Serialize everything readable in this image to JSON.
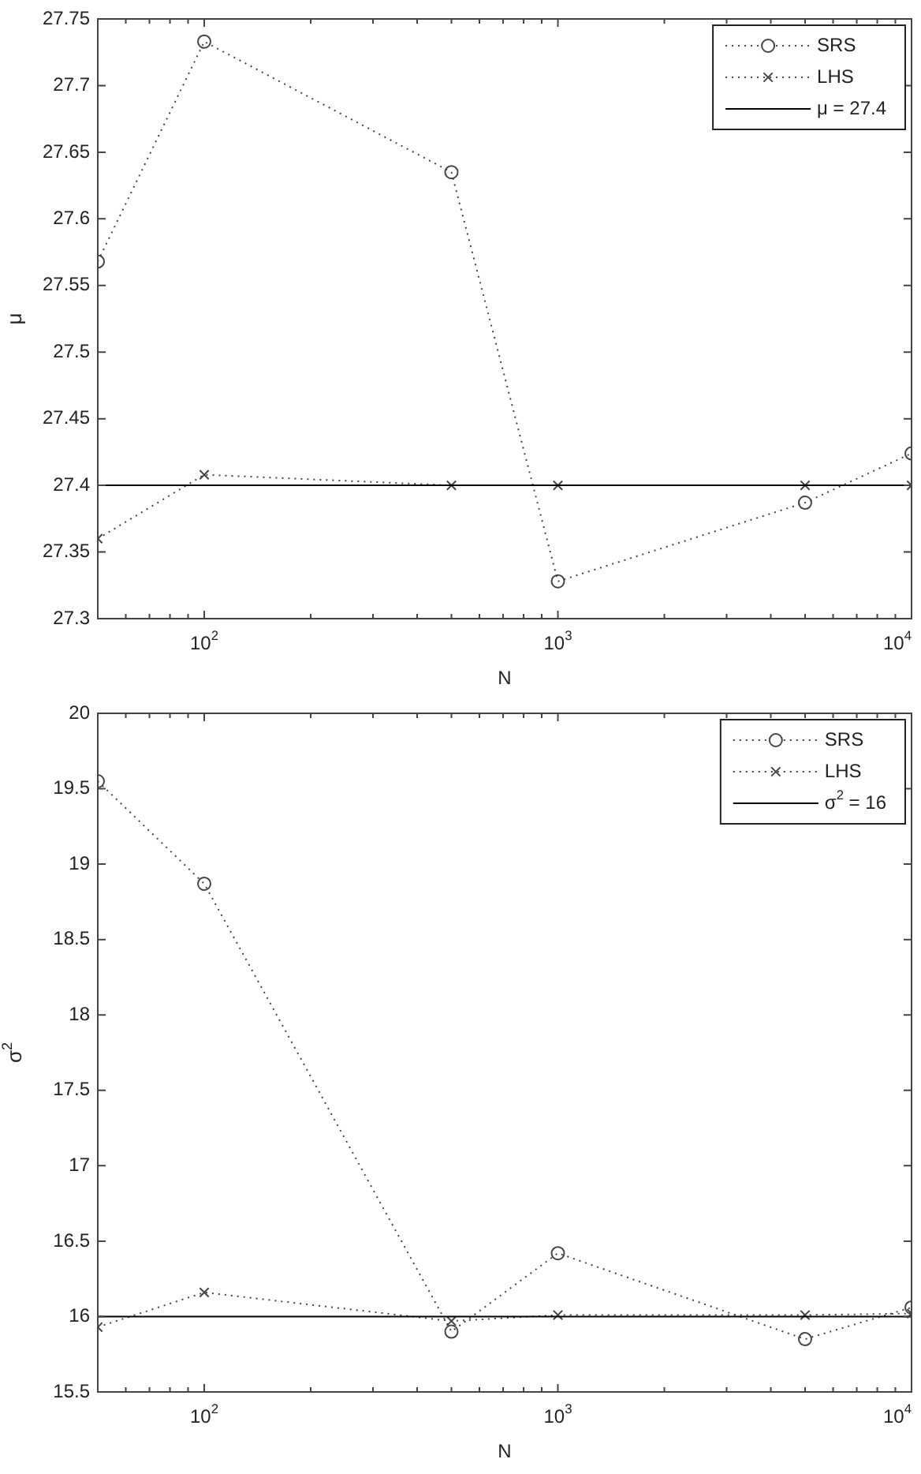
{
  "chart_data": [
    {
      "type": "line",
      "xlabel": "N",
      "ylabel": "μ",
      "log": "x",
      "legend": "top right",
      "line_style": "dotted",
      "x": [
        50,
        100,
        500,
        1000,
        5000,
        10000
      ],
      "xlim": [
        50,
        10000
      ],
      "xticks": [
        {
          "value": 60,
          "label": null
        },
        {
          "value": 70,
          "label": null
        },
        {
          "value": 80,
          "label": null
        },
        {
          "value": 90,
          "label": null
        },
        {
          "value": 100,
          "label": "10$^{2}$"
        },
        {
          "value": 200,
          "label": null
        },
        {
          "value": 300,
          "label": null
        },
        {
          "value": 400,
          "label": null
        },
        {
          "value": 500,
          "label": null
        },
        {
          "value": 600,
          "label": null
        },
        {
          "value": 700,
          "label": null
        },
        {
          "value": 800,
          "label": null
        },
        {
          "value": 900,
          "label": null
        },
        {
          "value": 1000,
          "label": "10$^{3}$"
        },
        {
          "value": 2000,
          "label": null
        },
        {
          "value": 3000,
          "label": null
        },
        {
          "value": 4000,
          "label": null
        },
        {
          "value": 5000,
          "label": null
        },
        {
          "value": 6000,
          "label": null
        },
        {
          "value": 7000,
          "label": null
        },
        {
          "value": 8000,
          "label": null
        },
        {
          "value": 9000,
          "label": null
        },
        {
          "value": 10000,
          "label": "10$^{4}$"
        }
      ],
      "ylim": [
        27.3,
        27.75
      ],
      "yticks": [
        27.3,
        27.35,
        27.4,
        27.45,
        27.5,
        27.55,
        27.6,
        27.65,
        27.7,
        27.75
      ],
      "series": [
        {
          "name": "SRS",
          "color": "#444444",
          "marker": "circle",
          "values": [
            27.568,
            27.733,
            27.635,
            27.328,
            27.387,
            27.424
          ]
        },
        {
          "name": "LHS",
          "color": "#444444",
          "marker": "cross",
          "values": [
            27.36,
            27.408,
            27.4,
            27.4,
            27.4,
            27.4
          ]
        }
      ],
      "ref_lines": [
        {
          "axis": "y",
          "value": 27.4,
          "label": "μ = 27.4",
          "color": "#000000",
          "line_style": "solid"
        }
      ]
    },
    {
      "type": "line",
      "xlabel": "N",
      "ylabel": "σ$^{2}$",
      "log": "x",
      "legend": "top right",
      "line_style": "dotted",
      "x": [
        50,
        100,
        500,
        1000,
        5000,
        10000
      ],
      "xlim": [
        50,
        10000
      ],
      "xticks": [
        {
          "value": 60,
          "label": null
        },
        {
          "value": 70,
          "label": null
        },
        {
          "value": 80,
          "label": null
        },
        {
          "value": 90,
          "label": null
        },
        {
          "value": 100,
          "label": "10$^{2}$"
        },
        {
          "value": 200,
          "label": null
        },
        {
          "value": 300,
          "label": null
        },
        {
          "value": 400,
          "label": null
        },
        {
          "value": 500,
          "label": null
        },
        {
          "value": 600,
          "label": null
        },
        {
          "value": 700,
          "label": null
        },
        {
          "value": 800,
          "label": null
        },
        {
          "value": 900,
          "label": null
        },
        {
          "value": 1000,
          "label": "10$^{3}$"
        },
        {
          "value": 2000,
          "label": null
        },
        {
          "value": 3000,
          "label": null
        },
        {
          "value": 4000,
          "label": null
        },
        {
          "value": 5000,
          "label": null
        },
        {
          "value": 6000,
          "label": null
        },
        {
          "value": 7000,
          "label": null
        },
        {
          "value": 8000,
          "label": null
        },
        {
          "value": 9000,
          "label": null
        },
        {
          "value": 10000,
          "label": "10$^{4}$"
        }
      ],
      "ylim": [
        15.5,
        20
      ],
      "yticks": [
        15.5,
        16,
        16.5,
        17,
        17.5,
        18,
        18.5,
        19,
        19.5,
        20
      ],
      "series": [
        {
          "name": "SRS",
          "color": "#444444",
          "marker": "circle",
          "values": [
            19.55,
            18.87,
            15.9,
            16.42,
            15.85,
            16.06
          ]
        },
        {
          "name": "LHS",
          "color": "#444444",
          "marker": "cross",
          "values": [
            15.93,
            16.16,
            15.97,
            16.01,
            16.01,
            16.02
          ]
        }
      ],
      "ref_lines": [
        {
          "axis": "y",
          "value": 16,
          "label": "σ$^{2}$ = 16",
          "color": "#000000",
          "line_style": "solid"
        }
      ]
    }
  ]
}
